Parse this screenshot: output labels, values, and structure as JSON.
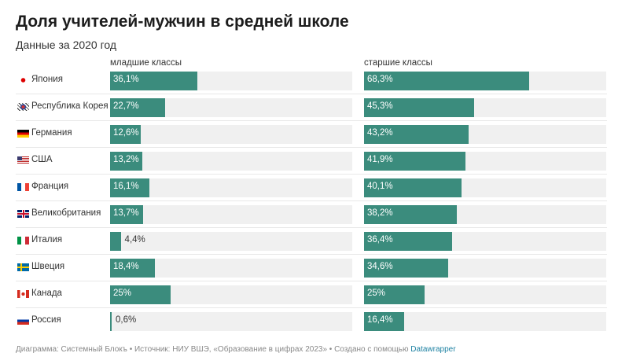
{
  "title": "Доля учителей-мужчин в средней школе",
  "subtitle": "Данные за 2020 год",
  "footer": {
    "text": "Диаграмма: Системный Блокъ • Источник: НИУ ВШЭ, «Образование в цифрах 2023» • Создано с помощью ",
    "link": "Datawrapper"
  },
  "colors": {
    "bar": "#3b8c7d",
    "background": "#f0f0f0",
    "link": "#1d81a2"
  },
  "chart_data": {
    "type": "bar",
    "orientation": "horizontal",
    "xlim": [
      0,
      100
    ],
    "unit": "%",
    "categories": [
      "Япония",
      "Республика Корея",
      "Германия",
      "США",
      "Франция",
      "Великобритания",
      "Италия",
      "Швеция",
      "Канада",
      "Россия"
    ],
    "flags": [
      "jp",
      "kr",
      "de",
      "us",
      "fr",
      "gb",
      "it",
      "se",
      "ca",
      "ru"
    ],
    "series": [
      {
        "name": "младшие классы",
        "values": [
          36.1,
          22.7,
          12.6,
          13.2,
          16.1,
          13.7,
          4.4,
          18.4,
          25,
          0.6
        ],
        "labels": [
          "36,1%",
          "22,7%",
          "12,6%",
          "13,2%",
          "16,1%",
          "13,7%",
          "4,4%",
          "18,4%",
          "25%",
          "0,6%"
        ]
      },
      {
        "name": "старшие классы",
        "values": [
          68.3,
          45.3,
          43.2,
          41.9,
          40.1,
          38.2,
          36.4,
          34.6,
          25,
          16.4
        ],
        "labels": [
          "68,3%",
          "45,3%",
          "43,2%",
          "41,9%",
          "40,1%",
          "38,2%",
          "36,4%",
          "34,6%",
          "25%",
          "16,4%"
        ]
      }
    ]
  }
}
